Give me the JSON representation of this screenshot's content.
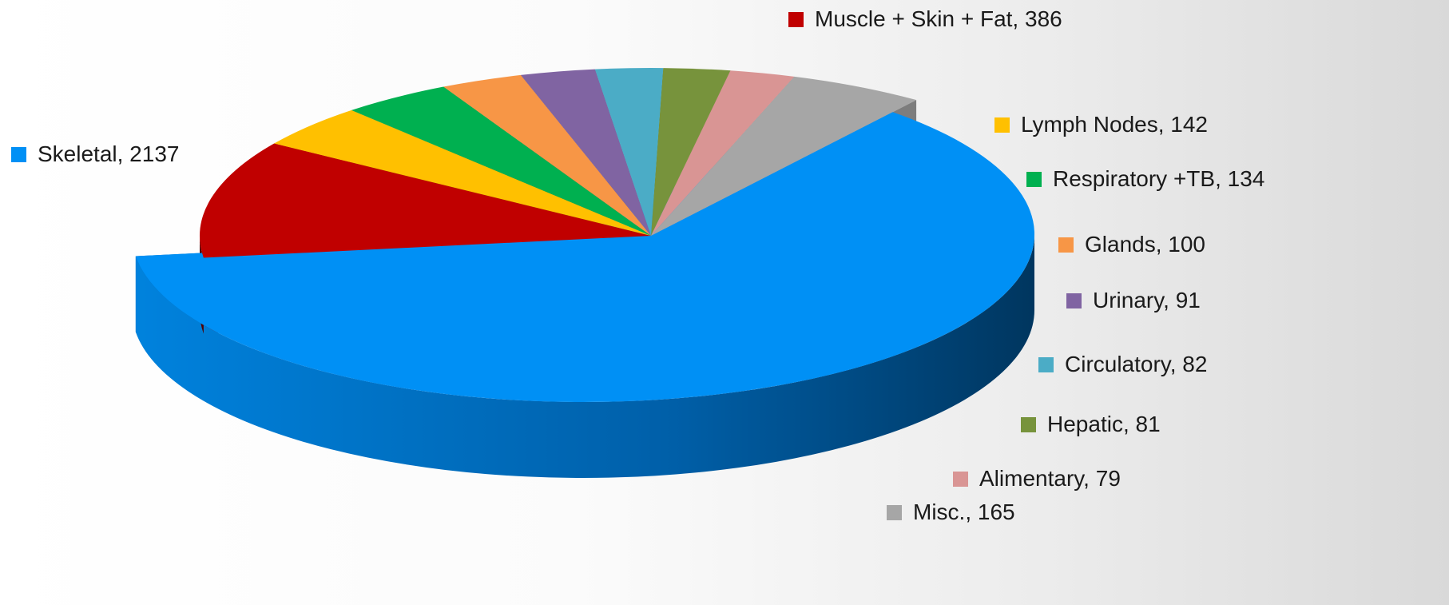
{
  "chart_data": {
    "type": "pie",
    "title": "",
    "style": "3d-exploded",
    "slices": [
      {
        "label": "Skeletal",
        "value": 2137,
        "color": "#0090f5"
      },
      {
        "label": "Muscle + Skin + Fat",
        "value": 386,
        "color": "#c00000"
      },
      {
        "label": "Lymph Nodes",
        "value": 142,
        "color": "#ffc000"
      },
      {
        "label": "Respiratory +TB",
        "value": 134,
        "color": "#00b050"
      },
      {
        "label": "Glands",
        "value": 100,
        "color": "#f79646"
      },
      {
        "label": "Urinary",
        "value": 91,
        "color": "#8064a2"
      },
      {
        "label": "Circulatory",
        "value": 82,
        "color": "#4bacc6"
      },
      {
        "label": "Hepatic",
        "value": 81,
        "color": "#77933c"
      },
      {
        "label": "Alimentary",
        "value": 79,
        "color": "#d99594"
      },
      {
        "label": "Misc.",
        "value": 165,
        "color": "#a6a6a6"
      }
    ],
    "data_labels": [
      "Skeletal, 2137",
      "Muscle + Skin + Fat, 386",
      "Lymph Nodes, 142",
      "Respiratory +TB, 134",
      "Glands, 100",
      "Urinary, 91",
      "Circulatory, 82",
      "Hepatic, 81",
      "Alimentary, 79",
      "Misc., 165"
    ]
  }
}
